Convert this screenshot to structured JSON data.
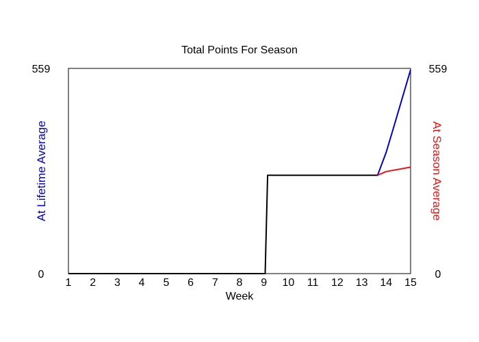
{
  "chart_data": {
    "type": "line",
    "title": "Total Points For Season",
    "xlabel": "Week",
    "ylabel_left": "At Lifetime Average",
    "ylabel_right": "At Season Average",
    "ylabel_left_color": "#0000cc",
    "ylabel_right_color": "#ee1111",
    "x_ticks": [
      "1",
      "2",
      "3",
      "4",
      "5",
      "6",
      "7",
      "8",
      "9",
      "10",
      "11",
      "12",
      "13",
      "14",
      "15"
    ],
    "xlim": [
      1,
      15
    ],
    "ylim": [
      0,
      559
    ],
    "y_ticks_left": [
      "0",
      "559"
    ],
    "y_ticks_right": [
      "0",
      "559"
    ],
    "grid": false,
    "series": [
      {
        "color": "#0000cc",
        "points": [
          [
            13.65,
            268
          ],
          [
            14.0,
            330
          ],
          [
            14.35,
            408
          ],
          [
            15.0,
            555
          ]
        ]
      },
      {
        "color": "#ee1111",
        "points": [
          [
            13.65,
            268
          ],
          [
            14.0,
            278
          ],
          [
            15.0,
            290
          ]
        ]
      },
      {
        "color": "#000000",
        "points": [
          [
            1,
            0
          ],
          [
            9.05,
            0
          ],
          [
            9.15,
            268
          ],
          [
            13.65,
            268
          ]
        ]
      }
    ]
  }
}
